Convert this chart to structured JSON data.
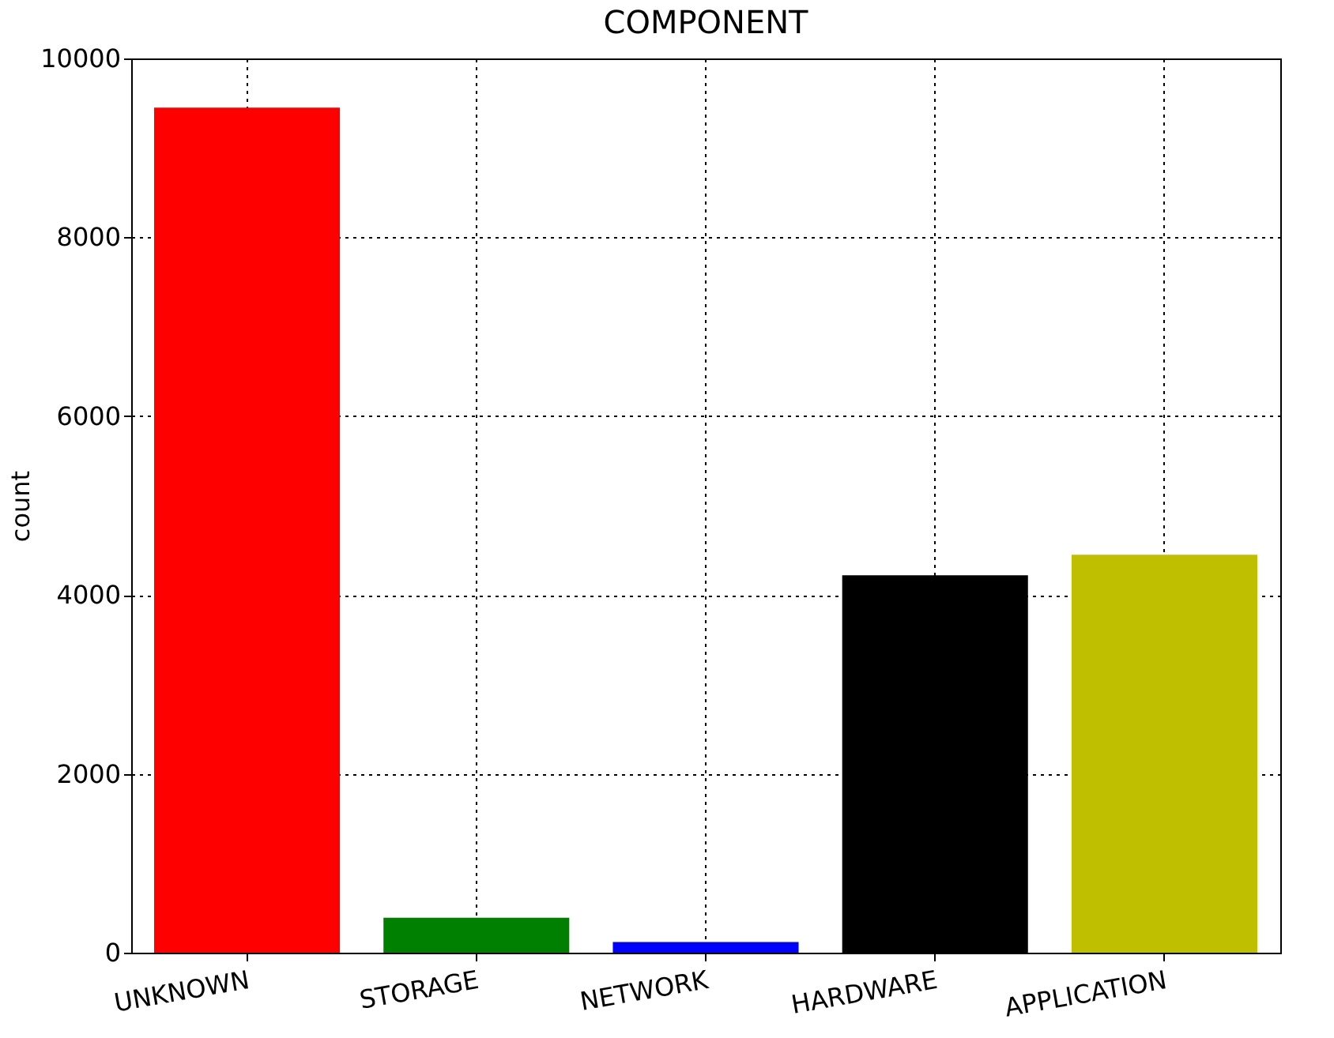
{
  "chart_data": {
    "type": "bar",
    "title": "COMPONENT",
    "ylabel": "count",
    "categories": [
      "UNKNOWN",
      "STORAGE",
      "NETWORK",
      "HARDWARE",
      "APPLICATION"
    ],
    "values": [
      9450,
      390,
      120,
      4220,
      4450
    ],
    "colors": [
      "#ff0000",
      "#008000",
      "#0000ff",
      "#000000",
      "#bfbf00"
    ],
    "ylim": [
      0,
      10000
    ],
    "yticks": [
      0,
      2000,
      4000,
      6000,
      8000,
      10000
    ],
    "grid": true
  }
}
